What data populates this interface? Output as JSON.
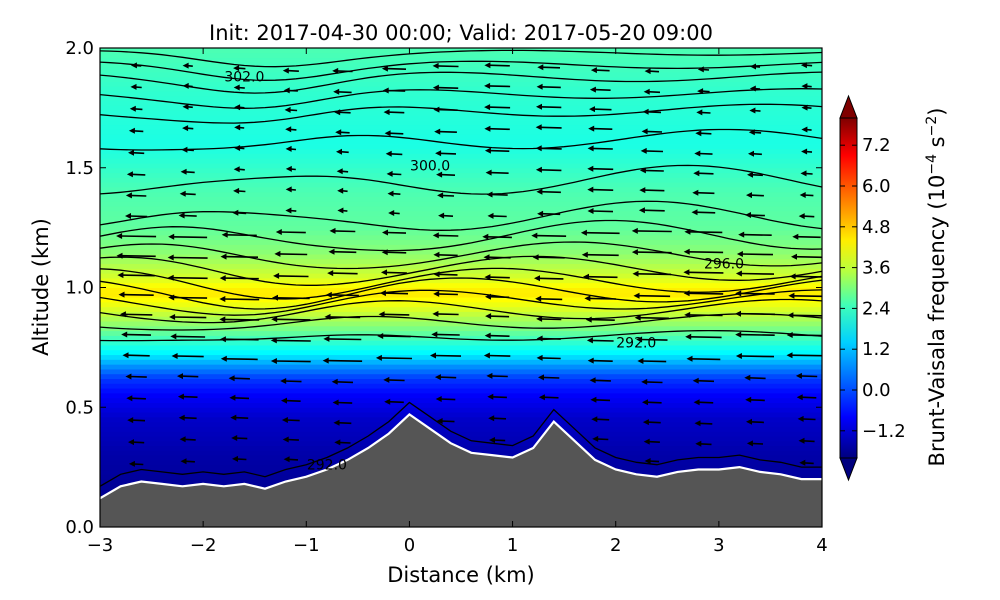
{
  "chart_data": {
    "type": "heatmap",
    "title": "Init: 2017-04-30 00:00; Valid: 2017-05-20 09:00",
    "xlabel": "Distance (km)",
    "ylabel": "Altitude (km)",
    "xlim": [
      -3,
      4
    ],
    "ylim": [
      0.0,
      2.0
    ],
    "x_ticks": [
      -3,
      -2,
      -1,
      0,
      1,
      2,
      3,
      4
    ],
    "x_tick_labels": [
      "−3",
      "−2",
      "−1",
      "0",
      "1",
      "2",
      "3",
      "4"
    ],
    "y_ticks": [
      0.0,
      0.5,
      1.0,
      1.5,
      2.0
    ],
    "y_tick_labels": [
      "0.0",
      "0.5",
      "1.0",
      "1.5",
      "2.0"
    ],
    "colorbar": {
      "label_main": "Brunt-Vaisala frequency (10",
      "label_exp": "−4",
      "label_unit": " s",
      "label_unit_exp": "−2",
      "label_close": ")",
      "ticks": [
        -1.2,
        0.0,
        1.2,
        2.4,
        3.6,
        4.8,
        6.0,
        7.2
      ],
      "tick_labels": [
        "−1.2",
        "0.0",
        "1.2",
        "2.4",
        "3.6",
        "4.8",
        "6.0",
        "7.2"
      ],
      "range": [
        -2.0,
        8.0
      ],
      "colormap": "jet",
      "extend": "both"
    },
    "terrain": {
      "x": [
        -3.0,
        -2.8,
        -2.6,
        -2.4,
        -2.2,
        -2.0,
        -1.8,
        -1.6,
        -1.4,
        -1.2,
        -1.0,
        -0.8,
        -0.6,
        -0.4,
        -0.2,
        0.0,
        0.2,
        0.4,
        0.6,
        0.8,
        1.0,
        1.2,
        1.4,
        1.6,
        1.8,
        2.0,
        2.2,
        2.4,
        2.6,
        2.8,
        3.0,
        3.2,
        3.4,
        3.6,
        3.8,
        4.0
      ],
      "y": [
        0.12,
        0.17,
        0.19,
        0.18,
        0.17,
        0.18,
        0.17,
        0.18,
        0.16,
        0.19,
        0.21,
        0.24,
        0.28,
        0.33,
        0.39,
        0.47,
        0.41,
        0.35,
        0.31,
        0.3,
        0.29,
        0.33,
        0.44,
        0.36,
        0.28,
        0.24,
        0.22,
        0.21,
        0.23,
        0.24,
        0.24,
        0.25,
        0.23,
        0.22,
        0.2,
        0.2
      ],
      "color": "#555555",
      "outline_color": "#ffffff"
    },
    "field_profile": {
      "altitude_km": [
        0.15,
        0.3,
        0.45,
        0.55,
        0.62,
        0.68,
        0.72,
        0.78,
        0.85,
        0.92,
        0.98,
        1.05,
        1.15,
        1.25,
        1.4,
        1.6,
        1.8,
        2.0
      ],
      "n2_value": [
        -1.8,
        -1.6,
        -1.3,
        -0.8,
        -0.2,
        0.8,
        1.6,
        2.3,
        3.2,
        4.0,
        4.5,
        3.8,
        3.1,
        2.7,
        2.5,
        2.0,
        2.2,
        2.5
      ]
    },
    "contour_labels": [
      {
        "text": "302.0",
        "x": -1.6,
        "y": 1.88
      },
      {
        "text": "300.0",
        "x": 0.2,
        "y": 1.51
      },
      {
        "text": "296.0",
        "x": 3.05,
        "y": 1.1
      },
      {
        "text": "292.0",
        "x": 2.2,
        "y": 0.77
      },
      {
        "text": "292.0",
        "x": -0.8,
        "y": 0.26
      }
    ],
    "contours": [
      {
        "y0": 1.98,
        "amp": 0.01
      },
      {
        "y0": 1.93,
        "amp": 0.015
      },
      {
        "y0": 1.88,
        "amp": 0.02
      },
      {
        "y0": 1.81,
        "amp": 0.02
      },
      {
        "y0": 1.74,
        "amp": 0.025
      },
      {
        "y0": 1.62,
        "amp": 0.04
      },
      {
        "y0": 1.45,
        "amp": 0.06
      },
      {
        "y0": 1.3,
        "amp": 0.06
      },
      {
        "y0": 1.22,
        "amp": 0.06
      },
      {
        "y0": 1.14,
        "amp": 0.05
      },
      {
        "y0": 1.08,
        "amp": 0.05
      },
      {
        "y0": 1.03,
        "amp": 0.05
      },
      {
        "y0": 0.99,
        "amp": 0.05
      },
      {
        "y0": 0.95,
        "amp": 0.04
      },
      {
        "y0": 0.91,
        "amp": 0.04
      },
      {
        "y0": 0.86,
        "amp": 0.03
      },
      {
        "y0": 0.8,
        "amp": 0.02
      }
    ],
    "wind_vector_direction": "westward"
  }
}
